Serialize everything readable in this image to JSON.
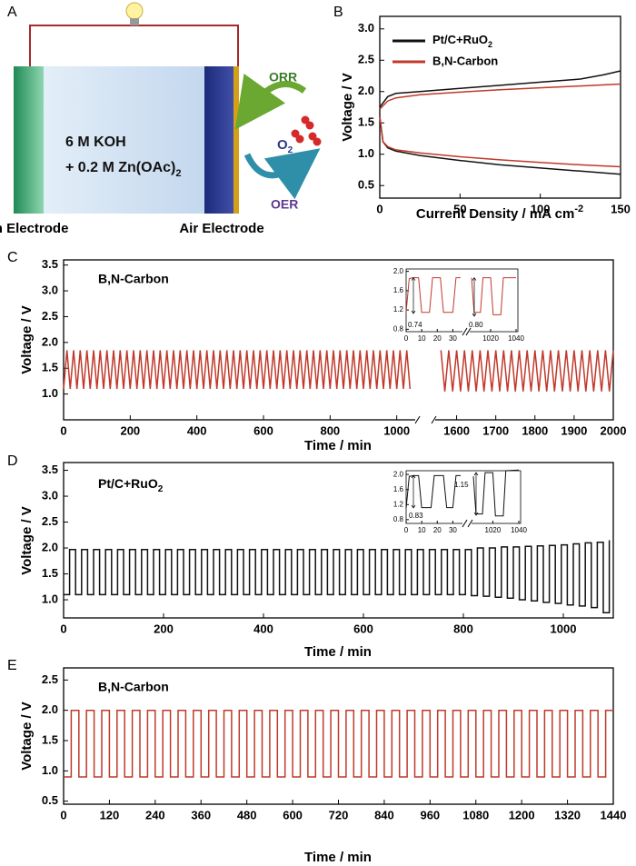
{
  "diagram": {
    "panel": "A",
    "electrolyte": [
      "6 M KOH",
      {
        "text": "+ 0.2 M Zn(OAc)",
        "sub": "2"
      }
    ],
    "orr": "ORR",
    "oer": "OER",
    "product": {
      "text": "O",
      "sub": "2"
    },
    "electrodes": [
      "Zn Electrode",
      "Air Electrode"
    ]
  },
  "chart_data": [
    {
      "type": "line",
      "panel": "B",
      "xlabel": {
        "text": "Current Density / mA cm",
        "sup": "-2"
      },
      "ylabel": "Voltage / V",
      "xlim": [
        0,
        150
      ],
      "ylim": [
        0.3,
        3.2
      ],
      "xticks": [
        0,
        50,
        100,
        150
      ],
      "yticks": [
        0.5,
        {
          "value": 1,
          "label": "1.0"
        },
        1.5,
        {
          "value": 2,
          "label": "2.0"
        },
        2.5,
        {
          "value": 3,
          "label": "3.0"
        }
      ],
      "legend": "upper left",
      "series": [
        {
          "name": {
            "text": "Pt/C+RuO",
            "sub": "2"
          },
          "color": "#111111",
          "x": [
            0,
            5,
            10,
            25,
            50,
            75,
            100,
            125,
            140,
            150,
            null,
            0,
            2,
            5,
            10,
            25,
            50,
            75,
            100,
            125,
            150
          ],
          "values": [
            1.75,
            1.92,
            1.97,
            2.0,
            2.05,
            2.1,
            2.15,
            2.2,
            2.27,
            2.33,
            null,
            1.6,
            1.2,
            1.1,
            1.05,
            0.98,
            0.9,
            0.83,
            0.78,
            0.73,
            0.68
          ]
        },
        {
          "name": "B,N-Carbon",
          "color": "#c0392b",
          "x": [
            0,
            5,
            10,
            25,
            50,
            75,
            100,
            125,
            150,
            null,
            0,
            2,
            5,
            10,
            25,
            50,
            75,
            100,
            125,
            150
          ],
          "values": [
            1.72,
            1.85,
            1.9,
            1.95,
            1.99,
            2.03,
            2.06,
            2.09,
            2.12,
            null,
            1.6,
            1.2,
            1.12,
            1.07,
            1.02,
            0.96,
            0.91,
            0.87,
            0.83,
            0.8
          ]
        }
      ]
    },
    {
      "type": "line",
      "panel": "C",
      "annotation": "B,N-Carbon",
      "xlabel": "Time / min",
      "ylabel": "Voltage / V",
      "xlim": [
        [
          0,
          1050
        ],
        [
          1550,
          2000
        ]
      ],
      "ylim": [
        0.5,
        3.6
      ],
      "xticks": [
        0,
        200,
        400,
        600,
        800,
        1000,
        1600,
        1700,
        1800,
        1900,
        2000
      ],
      "yticks": [
        {
          "value": 1,
          "label": "1.0"
        },
        1.5,
        {
          "value": 2,
          "label": "2.0"
        },
        2.5,
        {
          "value": 3,
          "label": "3.0"
        },
        3.5
      ],
      "series": [
        {
          "color": "#c0392b",
          "x": [
            0,
            10,
            20,
            30,
            40,
            50,
            60,
            70,
            80,
            90,
            100,
            110,
            120,
            130,
            140,
            150,
            160,
            170,
            180,
            190,
            200,
            210,
            220,
            230,
            240,
            250,
            260,
            270,
            280,
            290,
            300,
            310,
            320,
            330,
            340,
            350,
            360,
            370,
            380,
            390,
            400,
            410,
            420,
            430,
            440,
            450,
            460,
            470,
            480,
            490,
            500,
            510,
            520,
            530,
            540,
            550,
            560,
            570,
            580,
            590,
            600,
            610,
            620,
            630,
            640,
            650,
            660,
            670,
            680,
            690,
            700,
            710,
            720,
            730,
            740,
            750,
            760,
            770,
            780,
            790,
            800,
            810,
            820,
            830,
            840,
            850,
            860,
            870,
            880,
            890,
            900,
            910,
            920,
            930,
            940,
            950,
            960,
            970,
            980,
            990,
            1000,
            1010,
            1020,
            1030,
            1040,
            null,
            1560,
            1570,
            1580,
            1590,
            1600,
            1610,
            1620,
            1630,
            1640,
            1650,
            1660,
            1670,
            1680,
            1690,
            1700,
            1710,
            1720,
            1730,
            1740,
            1750,
            1760,
            1770,
            1780,
            1790,
            1800,
            1810,
            1820,
            1830,
            1840,
            1850,
            1860,
            1870,
            1880,
            1890,
            1900,
            1910,
            1920,
            1930,
            1940,
            1950,
            1960,
            1970,
            1980,
            1990,
            2000
          ],
          "values": [
            1.1,
            1.85,
            1.1,
            1.85,
            1.1,
            1.85,
            1.1,
            1.85,
            1.1,
            1.85,
            1.1,
            1.85,
            1.1,
            1.85,
            1.1,
            1.85,
            1.1,
            1.85,
            1.1,
            1.85,
            1.1,
            1.85,
            1.1,
            1.85,
            1.1,
            1.85,
            1.1,
            1.85,
            1.1,
            1.85,
            1.1,
            1.85,
            1.1,
            1.85,
            1.1,
            1.85,
            1.1,
            1.85,
            1.1,
            1.85,
            1.1,
            1.85,
            1.1,
            1.85,
            1.1,
            1.85,
            1.1,
            1.85,
            1.1,
            1.85,
            1.1,
            1.85,
            1.1,
            1.85,
            1.1,
            1.85,
            1.1,
            1.85,
            1.1,
            1.85,
            1.1,
            1.85,
            1.1,
            1.85,
            1.1,
            1.85,
            1.1,
            1.85,
            1.1,
            1.85,
            1.1,
            1.85,
            1.1,
            1.85,
            1.1,
            1.85,
            1.1,
            1.85,
            1.1,
            1.85,
            1.1,
            1.85,
            1.1,
            1.85,
            1.1,
            1.85,
            1.1,
            1.85,
            1.1,
            1.85,
            1.1,
            1.85,
            1.1,
            1.85,
            1.1,
            1.85,
            1.1,
            1.85,
            1.1,
            1.85,
            1.1,
            1.85,
            1.1,
            1.85,
            1.1,
            null,
            1.85,
            1.05,
            1.85,
            1.05,
            1.85,
            1.05,
            1.85,
            1.05,
            1.85,
            1.05,
            1.85,
            1.05,
            1.85,
            1.05,
            1.85,
            1.05,
            1.85,
            1.05,
            1.85,
            1.05,
            1.85,
            1.05,
            1.85,
            1.05,
            1.85,
            1.05,
            1.85,
            1.05,
            1.85,
            1.05,
            1.85,
            1.05,
            1.85,
            1.05,
            1.85,
            1.05,
            1.85,
            1.05,
            1.85,
            1.05,
            1.85,
            1.05,
            1.85,
            1.05,
            1.85
          ]
        }
      ]
    },
    {
      "type": "line",
      "xlim": [
        [
          0,
          35
        ],
        [
          1005,
          1040
        ]
      ],
      "ylim": [
        0.75,
        2.05
      ],
      "xticks": [
        0,
        10,
        20,
        30,
        1020,
        1040
      ],
      "yticks": [
        0.8,
        1.2,
        1.6,
        {
          "value": 2,
          "label": "2.0"
        }
      ],
      "annotations": [
        "0.74",
        "0.80"
      ],
      "series": [
        {
          "color": "#c0392b",
          "x": [
            0,
            2,
            4,
            8,
            10,
            15,
            17,
            22,
            24,
            30,
            32,
            35,
            null,
            1005,
            1007,
            1012,
            1014,
            1020,
            1022,
            1028,
            1030,
            1040
          ],
          "values": [
            1.15,
            1.85,
            1.87,
            1.87,
            1.15,
            1.15,
            1.87,
            1.87,
            1.15,
            1.15,
            1.87,
            1.87,
            null,
            1.87,
            1.15,
            1.15,
            1.87,
            1.87,
            1.1,
            1.1,
            1.87,
            1.87
          ]
        }
      ]
    },
    {
      "type": "line",
      "panel": "D",
      "annotation": {
        "text": "Pt/C+RuO",
        "sub": "2"
      },
      "xlabel": "Time / min",
      "ylabel": "Voltage / V",
      "xlim": [
        0,
        1100
      ],
      "ylim": [
        0.65,
        3.65
      ],
      "xticks": [
        0,
        200,
        400,
        600,
        800,
        1000
      ],
      "yticks": [
        {
          "value": 1,
          "label": "1.0"
        },
        1.5,
        {
          "value": 2,
          "label": "2.0"
        },
        2.5,
        {
          "value": 3,
          "label": "3.0"
        },
        3.5
      ],
      "drawstyle": "steps",
      "series": [
        {
          "color": "#111111",
          "x": [
            0,
            12,
            24,
            36,
            48,
            60,
            72,
            84,
            96,
            108,
            120,
            132,
            144,
            156,
            168,
            180,
            192,
            204,
            216,
            228,
            240,
            252,
            264,
            276,
            288,
            300,
            312,
            324,
            336,
            348,
            360,
            372,
            384,
            396,
            408,
            420,
            432,
            444,
            456,
            468,
            480,
            492,
            504,
            516,
            528,
            540,
            552,
            564,
            576,
            588,
            600,
            612,
            624,
            636,
            648,
            660,
            672,
            684,
            696,
            708,
            720,
            732,
            744,
            756,
            768,
            780,
            792,
            804,
            816,
            828,
            840,
            852,
            864,
            876,
            888,
            900,
            912,
            924,
            936,
            948,
            960,
            972,
            984,
            996,
            1008,
            1020,
            1032,
            1044,
            1056,
            1068,
            1080,
            1092
          ],
          "values": [
            1.1,
            1.97,
            1.1,
            1.97,
            1.1,
            1.97,
            1.1,
            1.97,
            1.1,
            1.97,
            1.1,
            1.97,
            1.1,
            1.97,
            1.1,
            1.97,
            1.1,
            1.97,
            1.1,
            1.97,
            1.1,
            1.97,
            1.1,
            1.97,
            1.1,
            1.97,
            1.1,
            1.97,
            1.1,
            1.97,
            1.1,
            1.97,
            1.1,
            1.97,
            1.1,
            1.97,
            1.1,
            1.97,
            1.1,
            1.97,
            1.1,
            1.97,
            1.1,
            1.97,
            1.1,
            1.97,
            1.1,
            1.97,
            1.1,
            1.97,
            1.1,
            1.97,
            1.1,
            1.97,
            1.1,
            1.97,
            1.1,
            1.97,
            1.1,
            1.97,
            1.1,
            1.97,
            1.1,
            1.97,
            1.1,
            1.97,
            1.1,
            1.97,
            1.08,
            2.0,
            1.07,
            2.0,
            1.05,
            2.02,
            1.03,
            2.02,
            1.0,
            2.03,
            0.98,
            2.04,
            0.95,
            2.05,
            0.93,
            2.06,
            0.9,
            2.08,
            0.88,
            2.1,
            0.85,
            2.11,
            0.75,
            2.15
          ]
        }
      ]
    },
    {
      "type": "line",
      "xlim": [
        [
          0,
          35
        ],
        [
          1005,
          1040
        ]
      ],
      "ylim": [
        0.7,
        2.1
      ],
      "xticks": [
        0,
        10,
        20,
        30,
        1020,
        1040
      ],
      "yticks": [
        0.8,
        1.2,
        1.6,
        {
          "value": 2,
          "label": "2.0"
        }
      ],
      "annotations": [
        "0.83",
        "1.15"
      ],
      "series": [
        {
          "color": "#111111",
          "x": [
            0,
            2,
            5,
            8,
            10,
            16,
            18,
            24,
            26,
            30,
            32,
            35,
            null,
            1005,
            1007,
            1012,
            1014,
            1020,
            1022,
            1028,
            1030,
            1040
          ],
          "values": [
            1.1,
            1.95,
            1.97,
            1.97,
            1.12,
            1.12,
            1.97,
            1.97,
            1.12,
            1.12,
            1.97,
            1.97,
            null,
            1.95,
            0.95,
            0.95,
            2.05,
            2.05,
            0.9,
            0.9,
            2.1,
            2.12
          ]
        }
      ]
    },
    {
      "type": "line",
      "panel": "E",
      "annotation": "B,N-Carbon",
      "xlabel": "Time / min",
      "ylabel": "Voltage / V",
      "xlim": [
        0,
        1440
      ],
      "ylim": [
        0.45,
        2.7
      ],
      "xticks": [
        0,
        120,
        240,
        360,
        480,
        600,
        720,
        840,
        960,
        1080,
        1200,
        1320,
        1440
      ],
      "yticks": [
        0.5,
        {
          "value": 1,
          "label": "1.0"
        },
        1.5,
        {
          "value": 2,
          "label": "2.0"
        },
        2.5
      ],
      "drawstyle": "steps",
      "series": [
        {
          "color": "#c0392b",
          "x": [
            0,
            20,
            40,
            60,
            80,
            100,
            120,
            140,
            160,
            180,
            200,
            220,
            240,
            260,
            280,
            300,
            320,
            340,
            360,
            380,
            400,
            420,
            440,
            460,
            480,
            500,
            520,
            540,
            560,
            580,
            600,
            620,
            640,
            660,
            680,
            700,
            720,
            740,
            760,
            780,
            800,
            820,
            840,
            860,
            880,
            900,
            920,
            940,
            960,
            980,
            1000,
            1020,
            1040,
            1060,
            1080,
            1100,
            1120,
            1140,
            1160,
            1180,
            1200,
            1220,
            1240,
            1260,
            1280,
            1300,
            1320,
            1340,
            1360,
            1380,
            1400,
            1420,
            1440
          ],
          "values": [
            0.9,
            2.0,
            0.9,
            2.0,
            0.9,
            2.0,
            0.9,
            2.0,
            0.9,
            2.0,
            0.9,
            2.0,
            0.9,
            2.0,
            0.9,
            2.0,
            0.9,
            2.0,
            0.9,
            2.0,
            0.9,
            2.0,
            0.9,
            2.0,
            0.9,
            2.0,
            0.9,
            2.0,
            0.9,
            2.0,
            0.9,
            2.0,
            0.9,
            2.0,
            0.9,
            2.0,
            0.9,
            2.0,
            0.9,
            2.0,
            0.9,
            2.0,
            0.9,
            2.0,
            0.9,
            2.0,
            0.9,
            2.0,
            0.9,
            2.0,
            0.9,
            2.0,
            0.9,
            2.0,
            0.9,
            2.0,
            0.9,
            2.0,
            0.9,
            2.0,
            0.9,
            2.0,
            0.9,
            2.0,
            0.9,
            2.0,
            0.9,
            2.0,
            0.9,
            2.0,
            0.9,
            2.0,
            2.0
          ]
        }
      ]
    }
  ]
}
